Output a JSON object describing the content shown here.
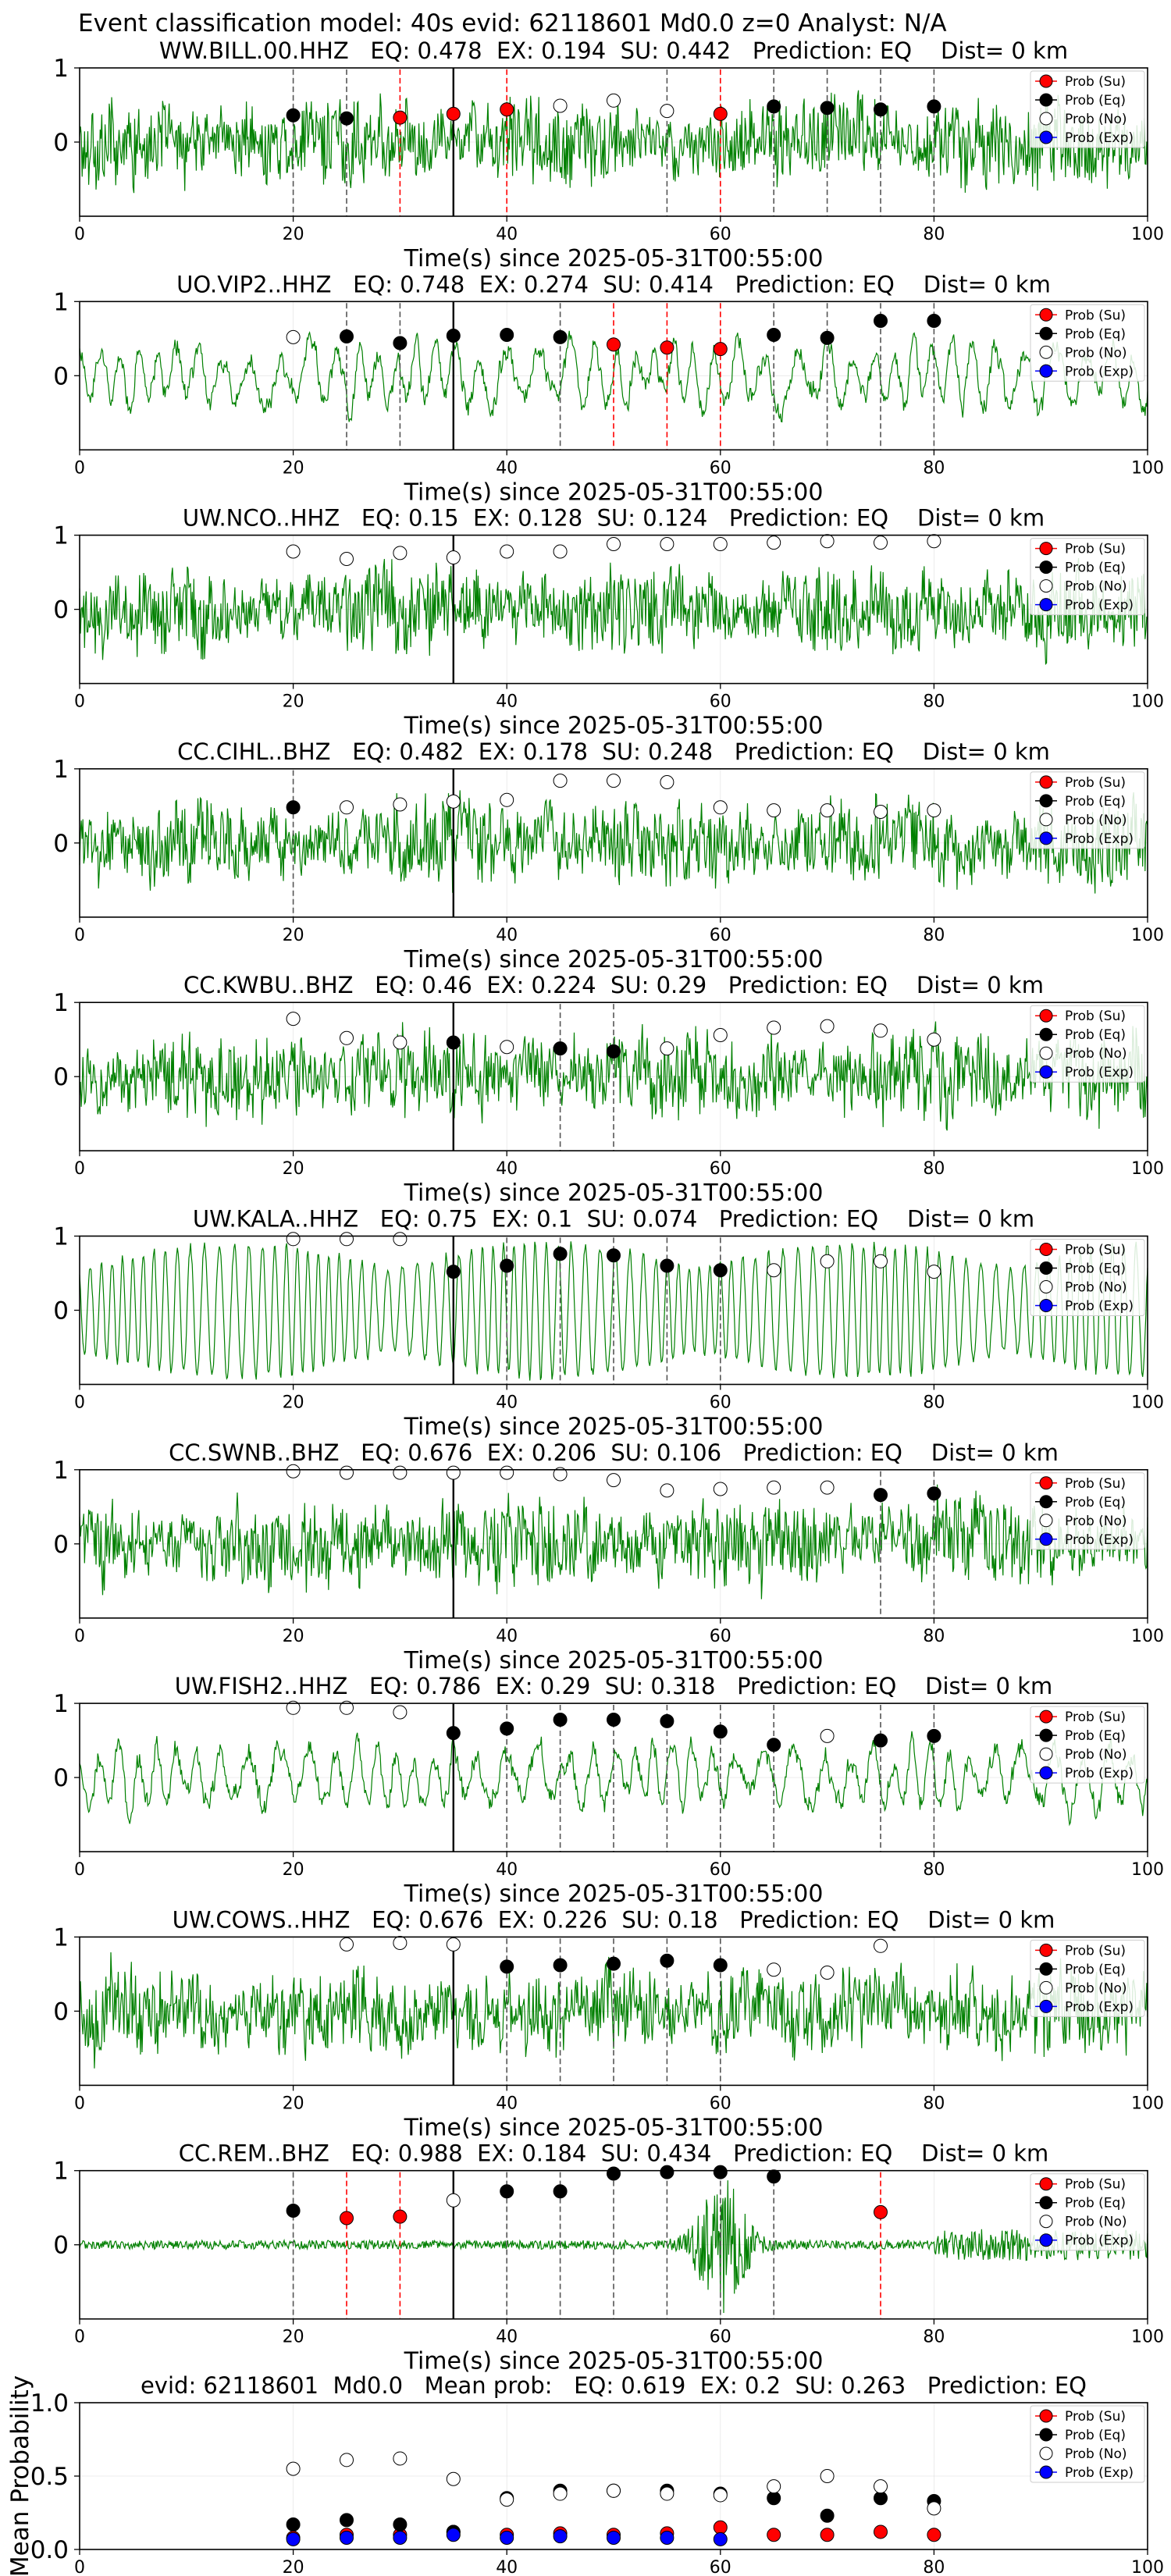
{
  "figure": {
    "suptitle": "Event classification model: 40s evid: 62118601 Md0.0 z=0 Analyst: N/A",
    "xlabel": "Time(s) since 2025-05-31T00:55:00",
    "legend": [
      "Prob (Su)",
      "Prob (Eq)",
      "Prob (No)",
      "Prob (Exp)"
    ],
    "colors": {
      "su": "#ff0000",
      "eq": "#000000",
      "no": "#ffffff",
      "exp": "#0000ff",
      "trace": "#008000",
      "grid": "#d0d0d0"
    }
  },
  "chart_data": [
    {
      "type": "scatter",
      "title": "WW.BILL.00.HHZ   EQ: 0.478  EX: 0.194  SU: 0.442   Prediction: EQ    Dist= 0 km",
      "xlim": [
        0,
        100
      ],
      "ylim": [
        -1,
        1
      ],
      "xticks": [
        0,
        20,
        40,
        60,
        80,
        100
      ],
      "yticks": [
        0,
        1
      ],
      "trace_character": "noisy",
      "vlines": {
        "solid": [
          35
        ],
        "black_dashed": [
          20,
          25,
          55,
          65,
          70,
          75,
          80
        ],
        "red_dashed": [
          30,
          40,
          60
        ]
      },
      "points": [
        {
          "t": 20,
          "p": 0.36,
          "c": "eq"
        },
        {
          "t": 25,
          "p": 0.32,
          "c": "eq"
        },
        {
          "t": 30,
          "p": 0.33,
          "c": "su"
        },
        {
          "t": 35,
          "p": 0.38,
          "c": "su"
        },
        {
          "t": 40,
          "p": 0.44,
          "c": "su"
        },
        {
          "t": 45,
          "p": 0.49,
          "c": "no"
        },
        {
          "t": 50,
          "p": 0.56,
          "c": "no"
        },
        {
          "t": 55,
          "p": 0.42,
          "c": "no"
        },
        {
          "t": 60,
          "p": 0.38,
          "c": "su"
        },
        {
          "t": 65,
          "p": 0.48,
          "c": "eq"
        },
        {
          "t": 70,
          "p": 0.46,
          "c": "eq"
        },
        {
          "t": 75,
          "p": 0.44,
          "c": "eq"
        },
        {
          "t": 80,
          "p": 0.48,
          "c": "eq"
        }
      ]
    },
    {
      "type": "scatter",
      "title": "UO.VIP2..HHZ   EQ: 0.748  EX: 0.274  SU: 0.414   Prediction: EQ    Dist= 0 km",
      "xlim": [
        0,
        100
      ],
      "ylim": [
        -1,
        1
      ],
      "xticks": [
        0,
        20,
        40,
        60,
        80,
        100
      ],
      "yticks": [
        0,
        1
      ],
      "trace_character": "wavy",
      "vlines": {
        "solid": [
          35
        ],
        "black_dashed": [
          25,
          30,
          45,
          65,
          70,
          75,
          80
        ],
        "red_dashed": [
          50,
          55,
          60
        ]
      },
      "points": [
        {
          "t": 20,
          "p": 0.52,
          "c": "no"
        },
        {
          "t": 25,
          "p": 0.53,
          "c": "eq"
        },
        {
          "t": 30,
          "p": 0.44,
          "c": "eq"
        },
        {
          "t": 35,
          "p": 0.54,
          "c": "eq"
        },
        {
          "t": 40,
          "p": 0.55,
          "c": "eq"
        },
        {
          "t": 45,
          "p": 0.52,
          "c": "eq"
        },
        {
          "t": 50,
          "p": 0.42,
          "c": "su"
        },
        {
          "t": 55,
          "p": 0.38,
          "c": "su"
        },
        {
          "t": 60,
          "p": 0.36,
          "c": "su"
        },
        {
          "t": 65,
          "p": 0.55,
          "c": "eq"
        },
        {
          "t": 70,
          "p": 0.51,
          "c": "eq"
        },
        {
          "t": 75,
          "p": 0.74,
          "c": "eq"
        },
        {
          "t": 80,
          "p": 0.74,
          "c": "eq"
        }
      ]
    },
    {
      "type": "scatter",
      "title": "UW.NCO..HHZ   EQ: 0.15  EX: 0.128  SU: 0.124   Prediction: EQ    Dist= 0 km",
      "xlim": [
        0,
        100
      ],
      "ylim": [
        -1,
        1
      ],
      "xticks": [
        0,
        20,
        40,
        60,
        80,
        100
      ],
      "yticks": [
        0,
        1
      ],
      "trace_character": "noisy",
      "vlines": {
        "solid": [
          35
        ],
        "black_dashed": [],
        "red_dashed": []
      },
      "points": [
        {
          "t": 20,
          "p": 0.78,
          "c": "no"
        },
        {
          "t": 25,
          "p": 0.68,
          "c": "no"
        },
        {
          "t": 30,
          "p": 0.76,
          "c": "no"
        },
        {
          "t": 35,
          "p": 0.7,
          "c": "no"
        },
        {
          "t": 40,
          "p": 0.78,
          "c": "no"
        },
        {
          "t": 45,
          "p": 0.78,
          "c": "no"
        },
        {
          "t": 50,
          "p": 0.88,
          "c": "no"
        },
        {
          "t": 55,
          "p": 0.88,
          "c": "no"
        },
        {
          "t": 60,
          "p": 0.88,
          "c": "no"
        },
        {
          "t": 65,
          "p": 0.9,
          "c": "no"
        },
        {
          "t": 70,
          "p": 0.92,
          "c": "no"
        },
        {
          "t": 75,
          "p": 0.9,
          "c": "no"
        },
        {
          "t": 80,
          "p": 0.92,
          "c": "no"
        }
      ]
    },
    {
      "type": "scatter",
      "title": "CC.CIHL..BHZ   EQ: 0.482  EX: 0.178  SU: 0.248   Prediction: EQ    Dist= 0 km",
      "xlim": [
        0,
        100
      ],
      "ylim": [
        -1,
        1
      ],
      "xticks": [
        0,
        20,
        40,
        60,
        80,
        100
      ],
      "yticks": [
        0,
        1
      ],
      "trace_character": "noisy",
      "vlines": {
        "solid": [
          35
        ],
        "black_dashed": [
          20
        ],
        "red_dashed": []
      },
      "points": [
        {
          "t": 20,
          "p": 0.48,
          "c": "eq"
        },
        {
          "t": 25,
          "p": 0.48,
          "c": "no"
        },
        {
          "t": 30,
          "p": 0.52,
          "c": "no"
        },
        {
          "t": 35,
          "p": 0.56,
          "c": "no"
        },
        {
          "t": 40,
          "p": 0.58,
          "c": "no"
        },
        {
          "t": 45,
          "p": 0.84,
          "c": "no"
        },
        {
          "t": 50,
          "p": 0.84,
          "c": "no"
        },
        {
          "t": 55,
          "p": 0.82,
          "c": "no"
        },
        {
          "t": 60,
          "p": 0.48,
          "c": "no"
        },
        {
          "t": 65,
          "p": 0.44,
          "c": "no"
        },
        {
          "t": 70,
          "p": 0.44,
          "c": "no"
        },
        {
          "t": 75,
          "p": 0.42,
          "c": "no"
        },
        {
          "t": 80,
          "p": 0.44,
          "c": "no"
        }
      ]
    },
    {
      "type": "scatter",
      "title": "CC.KWBU..BHZ   EQ: 0.46  EX: 0.224  SU: 0.29   Prediction: EQ    Dist= 0 km",
      "xlim": [
        0,
        100
      ],
      "ylim": [
        -1,
        1
      ],
      "xticks": [
        0,
        20,
        40,
        60,
        80,
        100
      ],
      "yticks": [
        0,
        1
      ],
      "trace_character": "noisy",
      "vlines": {
        "solid": [
          35
        ],
        "black_dashed": [
          45,
          50
        ],
        "red_dashed": []
      },
      "points": [
        {
          "t": 20,
          "p": 0.78,
          "c": "no"
        },
        {
          "t": 25,
          "p": 0.52,
          "c": "no"
        },
        {
          "t": 30,
          "p": 0.46,
          "c": "no"
        },
        {
          "t": 35,
          "p": 0.46,
          "c": "eq"
        },
        {
          "t": 40,
          "p": 0.4,
          "c": "no"
        },
        {
          "t": 45,
          "p": 0.38,
          "c": "eq"
        },
        {
          "t": 50,
          "p": 0.34,
          "c": "eq"
        },
        {
          "t": 55,
          "p": 0.38,
          "c": "no"
        },
        {
          "t": 60,
          "p": 0.56,
          "c": "no"
        },
        {
          "t": 65,
          "p": 0.66,
          "c": "no"
        },
        {
          "t": 70,
          "p": 0.68,
          "c": "no"
        },
        {
          "t": 75,
          "p": 0.62,
          "c": "no"
        },
        {
          "t": 80,
          "p": 0.5,
          "c": "no"
        }
      ]
    },
    {
      "type": "scatter",
      "title": "UW.KALA..HHZ   EQ: 0.75  EX: 0.1  SU: 0.074   Prediction: EQ    Dist= 0 km",
      "xlim": [
        0,
        100
      ],
      "ylim": [
        -1,
        1
      ],
      "xticks": [
        0,
        20,
        40,
        60,
        80,
        100
      ],
      "yticks": [
        0,
        1
      ],
      "trace_character": "oscillating",
      "vlines": {
        "solid": [
          35
        ],
        "black_dashed": [
          40,
          45,
          50,
          55,
          60
        ],
        "red_dashed": []
      },
      "points": [
        {
          "t": 20,
          "p": 0.96,
          "c": "no"
        },
        {
          "t": 25,
          "p": 0.96,
          "c": "no"
        },
        {
          "t": 30,
          "p": 0.96,
          "c": "no"
        },
        {
          "t": 35,
          "p": 0.52,
          "c": "eq"
        },
        {
          "t": 40,
          "p": 0.6,
          "c": "eq"
        },
        {
          "t": 45,
          "p": 0.76,
          "c": "eq"
        },
        {
          "t": 50,
          "p": 0.74,
          "c": "eq"
        },
        {
          "t": 55,
          "p": 0.6,
          "c": "eq"
        },
        {
          "t": 60,
          "p": 0.54,
          "c": "eq"
        },
        {
          "t": 65,
          "p": 0.54,
          "c": "no"
        },
        {
          "t": 70,
          "p": 0.66,
          "c": "no"
        },
        {
          "t": 75,
          "p": 0.66,
          "c": "no"
        },
        {
          "t": 80,
          "p": 0.52,
          "c": "no"
        }
      ]
    },
    {
      "type": "scatter",
      "title": "CC.SWNB..BHZ   EQ: 0.676  EX: 0.206  SU: 0.106   Prediction: EQ    Dist= 0 km",
      "xlim": [
        0,
        100
      ],
      "ylim": [
        -1,
        1
      ],
      "xticks": [
        0,
        20,
        40,
        60,
        80,
        100
      ],
      "yticks": [
        0,
        1
      ],
      "trace_character": "noisy",
      "vlines": {
        "solid": [
          35
        ],
        "black_dashed": [
          75,
          80
        ],
        "red_dashed": []
      },
      "points": [
        {
          "t": 20,
          "p": 0.98,
          "c": "no"
        },
        {
          "t": 25,
          "p": 0.96,
          "c": "no"
        },
        {
          "t": 30,
          "p": 0.96,
          "c": "no"
        },
        {
          "t": 35,
          "p": 0.96,
          "c": "no"
        },
        {
          "t": 40,
          "p": 0.96,
          "c": "no"
        },
        {
          "t": 45,
          "p": 0.94,
          "c": "no"
        },
        {
          "t": 50,
          "p": 0.86,
          "c": "no"
        },
        {
          "t": 55,
          "p": 0.72,
          "c": "no"
        },
        {
          "t": 60,
          "p": 0.74,
          "c": "no"
        },
        {
          "t": 65,
          "p": 0.76,
          "c": "no"
        },
        {
          "t": 70,
          "p": 0.76,
          "c": "no"
        },
        {
          "t": 75,
          "p": 0.66,
          "c": "eq"
        },
        {
          "t": 80,
          "p": 0.68,
          "c": "eq"
        }
      ]
    },
    {
      "type": "scatter",
      "title": "UW.FISH2..HHZ   EQ: 0.786  EX: 0.29  SU: 0.318   Prediction: EQ    Dist= 0 km",
      "xlim": [
        0,
        100
      ],
      "ylim": [
        -1,
        1
      ],
      "xticks": [
        0,
        20,
        40,
        60,
        80,
        100
      ],
      "yticks": [
        0,
        1
      ],
      "trace_character": "wavy",
      "vlines": {
        "solid": [
          35
        ],
        "black_dashed": [
          40,
          45,
          50,
          55,
          60,
          65,
          75,
          80
        ],
        "red_dashed": []
      },
      "points": [
        {
          "t": 20,
          "p": 0.94,
          "c": "no"
        },
        {
          "t": 25,
          "p": 0.94,
          "c": "no"
        },
        {
          "t": 30,
          "p": 0.88,
          "c": "no"
        },
        {
          "t": 35,
          "p": 0.6,
          "c": "eq"
        },
        {
          "t": 40,
          "p": 0.66,
          "c": "eq"
        },
        {
          "t": 45,
          "p": 0.78,
          "c": "eq"
        },
        {
          "t": 50,
          "p": 0.78,
          "c": "eq"
        },
        {
          "t": 55,
          "p": 0.76,
          "c": "eq"
        },
        {
          "t": 60,
          "p": 0.62,
          "c": "eq"
        },
        {
          "t": 65,
          "p": 0.44,
          "c": "eq"
        },
        {
          "t": 70,
          "p": 0.56,
          "c": "no"
        },
        {
          "t": 75,
          "p": 0.5,
          "c": "eq"
        },
        {
          "t": 80,
          "p": 0.56,
          "c": "eq"
        }
      ]
    },
    {
      "type": "scatter",
      "title": "UW.COWS..HHZ   EQ: 0.676  EX: 0.226  SU: 0.18   Prediction: EQ    Dist= 0 km",
      "xlim": [
        0,
        100
      ],
      "ylim": [
        -1,
        1
      ],
      "xticks": [
        0,
        20,
        40,
        60,
        80,
        100
      ],
      "yticks": [
        0,
        1
      ],
      "trace_character": "noisy",
      "vlines": {
        "solid": [
          35
        ],
        "black_dashed": [
          40,
          45,
          50,
          55,
          60
        ],
        "red_dashed": []
      },
      "points": [
        {
          "t": 25,
          "p": 0.9,
          "c": "no"
        },
        {
          "t": 30,
          "p": 0.92,
          "c": "no"
        },
        {
          "t": 35,
          "p": 0.9,
          "c": "no"
        },
        {
          "t": 40,
          "p": 0.6,
          "c": "eq"
        },
        {
          "t": 45,
          "p": 0.62,
          "c": "eq"
        },
        {
          "t": 50,
          "p": 0.64,
          "c": "eq"
        },
        {
          "t": 55,
          "p": 0.68,
          "c": "eq"
        },
        {
          "t": 60,
          "p": 0.62,
          "c": "eq"
        },
        {
          "t": 65,
          "p": 0.56,
          "c": "no"
        },
        {
          "t": 70,
          "p": 0.52,
          "c": "no"
        },
        {
          "t": 75,
          "p": 0.88,
          "c": "no"
        }
      ]
    },
    {
      "type": "scatter",
      "title": "CC.REM..BHZ   EQ: 0.988  EX: 0.184  SU: 0.434   Prediction: EQ    Dist= 0 km",
      "xlim": [
        0,
        100
      ],
      "ylim": [
        -1,
        1
      ],
      "xticks": [
        0,
        20,
        40,
        60,
        80,
        100
      ],
      "yticks": [
        0,
        1
      ],
      "trace_character": "quiet_burst",
      "vlines": {
        "solid": [
          35
        ],
        "black_dashed": [
          20,
          40,
          45,
          50,
          55,
          60,
          65
        ],
        "red_dashed": [
          25,
          30,
          75
        ]
      },
      "points": [
        {
          "t": 20,
          "p": 0.46,
          "c": "eq"
        },
        {
          "t": 25,
          "p": 0.36,
          "c": "su"
        },
        {
          "t": 30,
          "p": 0.38,
          "c": "su"
        },
        {
          "t": 35,
          "p": 0.6,
          "c": "no"
        },
        {
          "t": 40,
          "p": 0.72,
          "c": "eq"
        },
        {
          "t": 45,
          "p": 0.72,
          "c": "eq"
        },
        {
          "t": 50,
          "p": 0.96,
          "c": "eq"
        },
        {
          "t": 55,
          "p": 0.98,
          "c": "eq"
        },
        {
          "t": 60,
          "p": 0.98,
          "c": "eq"
        },
        {
          "t": 65,
          "p": 0.92,
          "c": "eq"
        },
        {
          "t": 75,
          "p": 0.44,
          "c": "su"
        }
      ]
    },
    {
      "type": "scatter",
      "title": "evid: 62118601  Md0.0   Mean prob:   EQ: 0.619  EX: 0.2  SU: 0.263   Prediction: EQ",
      "xlim": [
        0,
        100
      ],
      "ylim": [
        0,
        1
      ],
      "xticks": [
        0,
        20,
        40,
        60,
        80,
        100
      ],
      "yticks": [
        0.0,
        0.5,
        1.0
      ],
      "yticklabels": [
        "0.0",
        "0.5",
        "1.0"
      ],
      "ylabel": "Mean Probability",
      "grid": true,
      "series": [
        {
          "name": "Prob (Su)",
          "c": "su",
          "x": [
            20,
            25,
            30,
            35,
            40,
            45,
            50,
            55,
            60,
            65,
            70,
            75,
            80
          ],
          "y": [
            0.08,
            0.1,
            0.1,
            0.12,
            0.1,
            0.11,
            0.1,
            0.11,
            0.15,
            0.1,
            0.1,
            0.12,
            0.1
          ]
        },
        {
          "name": "Prob (Eq)",
          "c": "eq",
          "x": [
            20,
            25,
            30,
            35,
            40,
            45,
            50,
            55,
            60,
            65,
            70,
            75,
            80
          ],
          "y": [
            0.17,
            0.2,
            0.17,
            0.12,
            0.35,
            0.4,
            0.4,
            0.4,
            0.38,
            0.35,
            0.23,
            0.35,
            0.33
          ]
        },
        {
          "name": "Prob (No)",
          "c": "no",
          "x": [
            20,
            25,
            30,
            35,
            40,
            45,
            50,
            55,
            60,
            65,
            70,
            75,
            80
          ],
          "y": [
            0.55,
            0.61,
            0.62,
            0.48,
            0.34,
            0.38,
            0.4,
            0.38,
            0.37,
            0.43,
            0.5,
            0.43,
            0.28
          ]
        },
        {
          "name": "Prob (Exp)",
          "c": "exp",
          "x": [
            20,
            25,
            30,
            35,
            40,
            45,
            50,
            55,
            60
          ],
          "y": [
            0.07,
            0.08,
            0.08,
            0.1,
            0.08,
            0.09,
            0.08,
            0.08,
            0.07
          ]
        }
      ]
    }
  ]
}
